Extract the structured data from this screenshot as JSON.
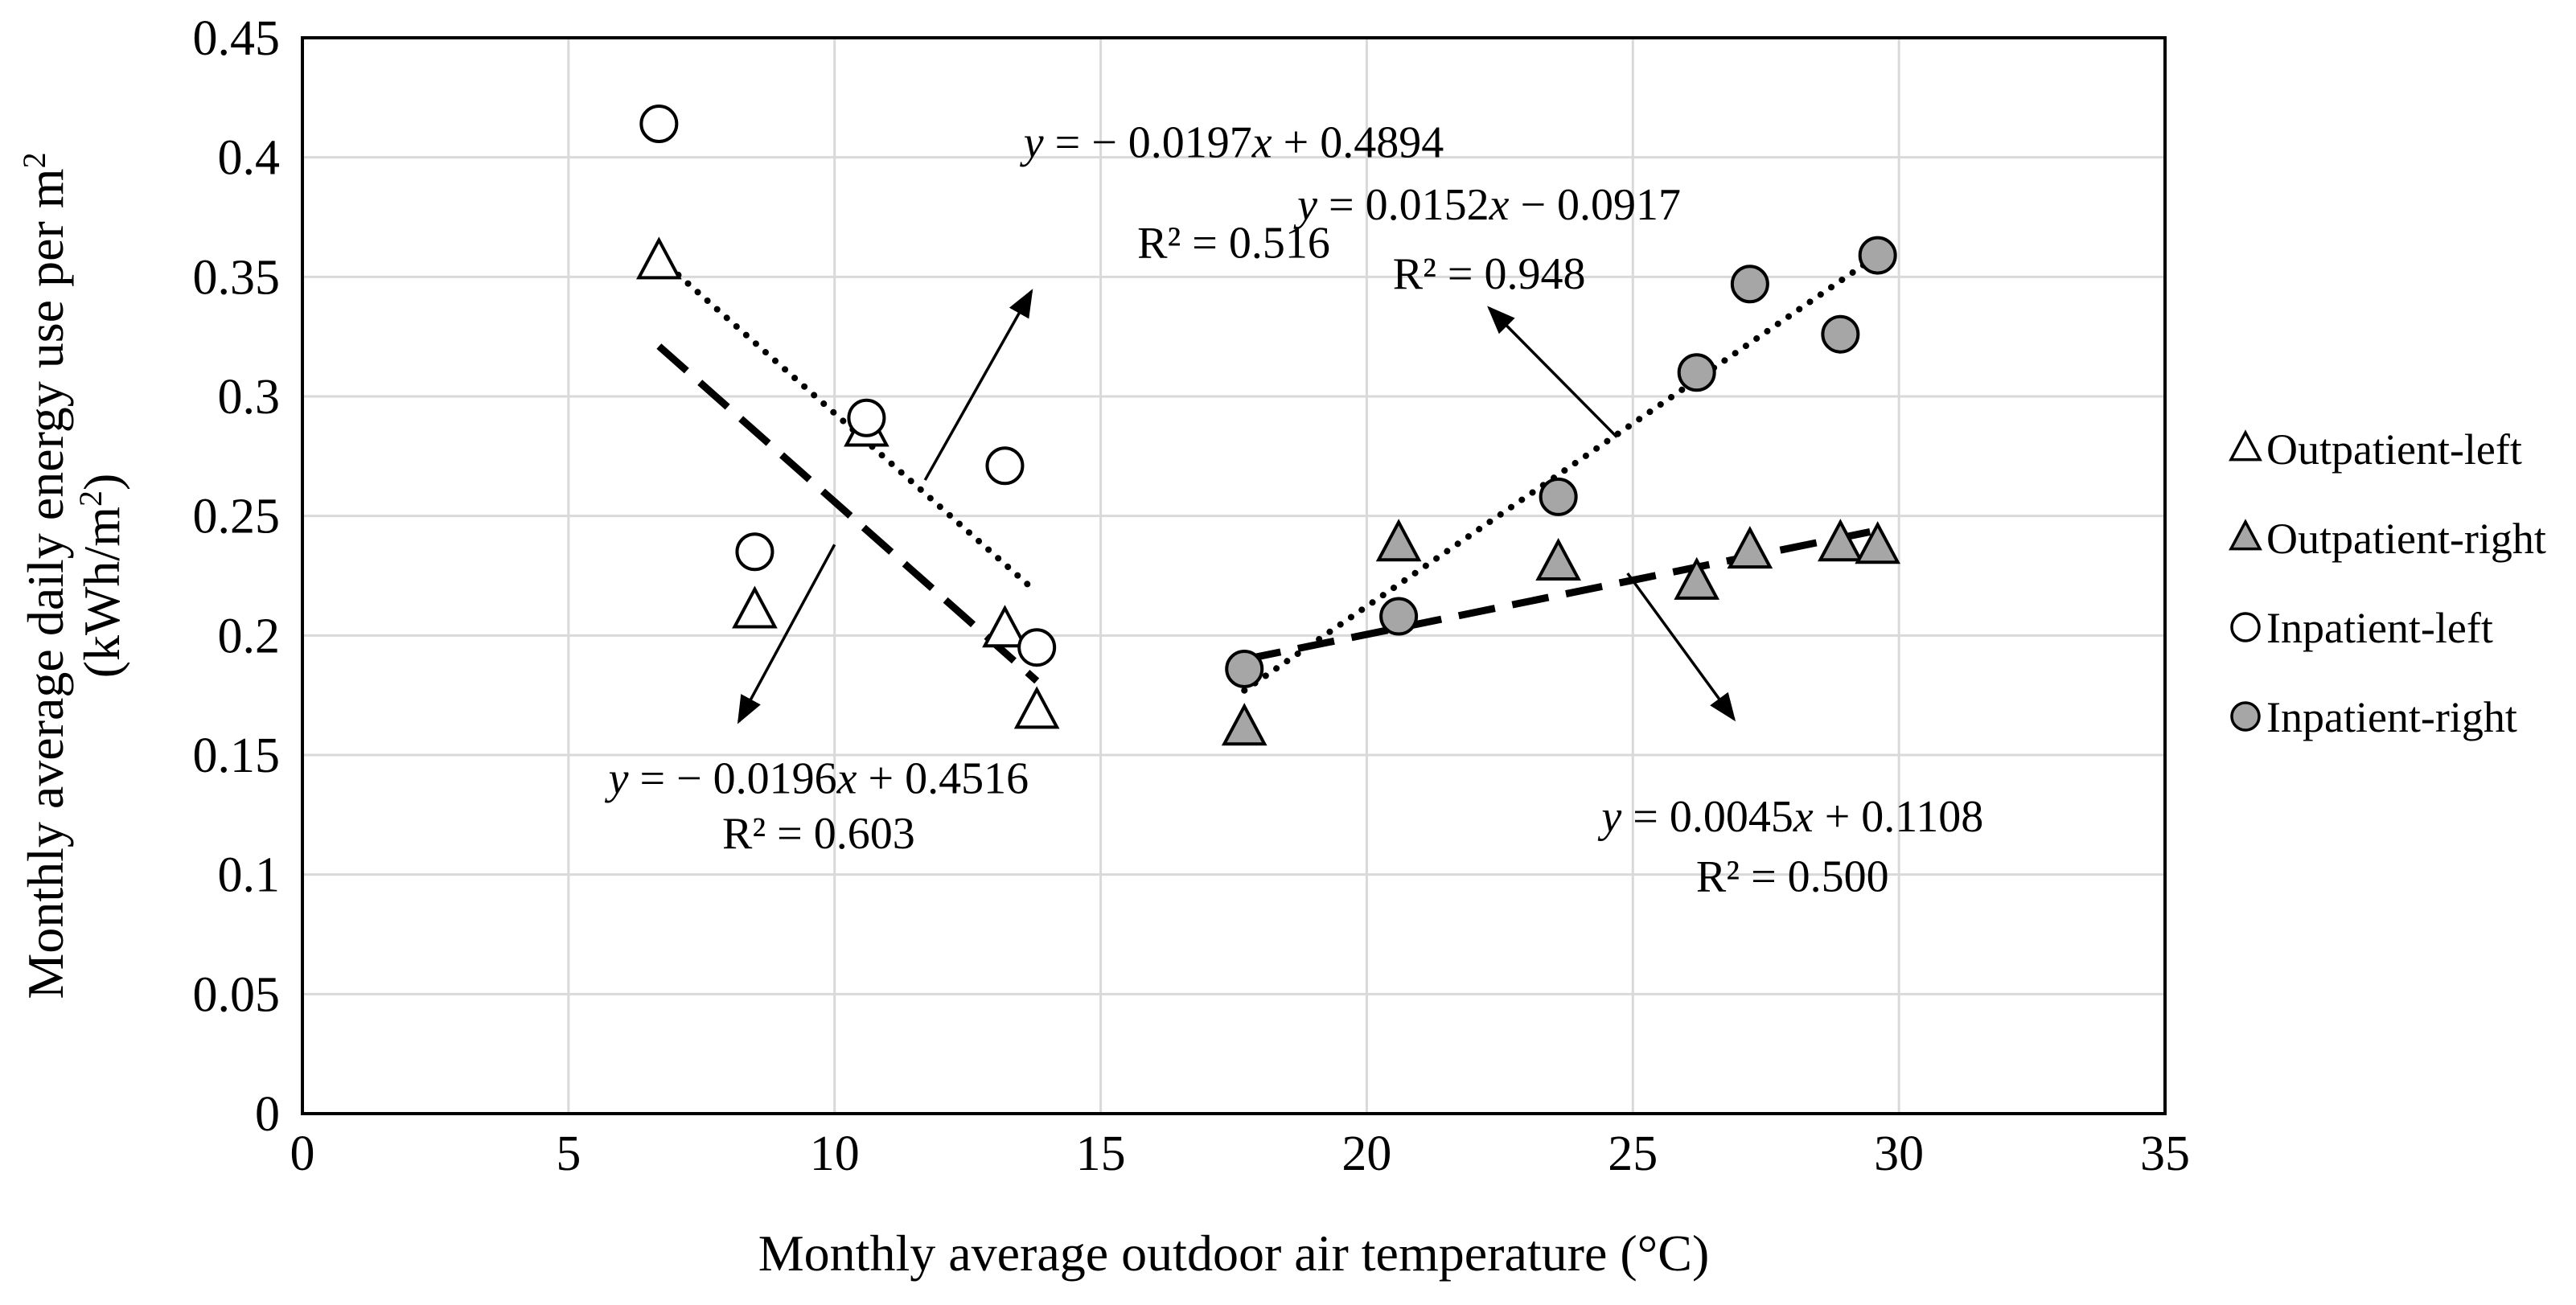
{
  "chart_data": {
    "type": "scatter",
    "xlabel": "Monthly average outdoor air temperature (°C)",
    "ylabel_line1": "Monthly average daily energy use per m",
    "ylabel_line1_sup": "2",
    "ylabel_line2": "(kWh/m",
    "ylabel_line2_sup": "2",
    "ylabel_line2_end": ")",
    "xlim": [
      0,
      35
    ],
    "ylim": [
      0,
      0.45
    ],
    "xticks": [
      0,
      5,
      10,
      15,
      20,
      25,
      30,
      35
    ],
    "yticks": [
      0,
      0.05,
      0.1,
      0.15,
      0.2,
      0.25,
      0.3,
      0.35,
      0.4,
      0.45
    ],
    "xtick_labels": [
      "0",
      "5",
      "10",
      "15",
      "20",
      "25",
      "30",
      "35"
    ],
    "ytick_labels": [
      "0",
      "0.05",
      "0.1",
      "0.15",
      "0.2",
      "0.25",
      "0.3",
      "0.35",
      "0.4",
      "0.45"
    ],
    "grid": true,
    "legend_position": "right",
    "series": [
      {
        "name": "Outpatient-left",
        "marker": "triangle",
        "fill": "#ffffff",
        "points": [
          [
            6.7,
            0.356
          ],
          [
            8.5,
            0.21
          ],
          [
            10.6,
            0.286
          ],
          [
            13.2,
            0.202
          ],
          [
            13.8,
            0.168
          ]
        ]
      },
      {
        "name": "Outpatient-right",
        "marker": "triangle",
        "fill": "#a6a6a6",
        "points": [
          [
            17.7,
            0.161
          ],
          [
            20.6,
            0.238
          ],
          [
            23.6,
            0.23
          ],
          [
            26.2,
            0.222
          ],
          [
            27.2,
            0.235
          ],
          [
            28.9,
            0.238
          ],
          [
            29.6,
            0.237
          ]
        ]
      },
      {
        "name": "Inpatient-left",
        "marker": "circle",
        "fill": "#ffffff",
        "points": [
          [
            6.7,
            0.414
          ],
          [
            8.5,
            0.235
          ],
          [
            10.6,
            0.291
          ],
          [
            13.2,
            0.271
          ],
          [
            13.8,
            0.195
          ]
        ]
      },
      {
        "name": "Inpatient-right",
        "marker": "circle",
        "fill": "#a6a6a6",
        "points": [
          [
            17.7,
            0.186
          ],
          [
            20.6,
            0.208
          ],
          [
            23.6,
            0.258
          ],
          [
            26.2,
            0.31
          ],
          [
            27.2,
            0.347
          ],
          [
            28.9,
            0.326
          ],
          [
            29.6,
            0.359
          ]
        ]
      }
    ],
    "trendlines": [
      {
        "name": "inpatient-left-fit",
        "style": "dotted",
        "x": [
          6.7,
          13.8
        ],
        "y": [
          0.358,
          0.218
        ]
      },
      {
        "name": "outpatient-left-fit",
        "style": "dashed",
        "x": [
          6.7,
          13.8
        ],
        "y": [
          0.321,
          0.181
        ]
      },
      {
        "name": "inpatient-right-fit",
        "style": "dotted",
        "x": [
          17.7,
          29.6
        ],
        "y": [
          0.177,
          0.359
        ]
      },
      {
        "name": "outpatient-right-fit",
        "style": "dashed",
        "x": [
          17.7,
          29.6
        ],
        "y": [
          0.19,
          0.244
        ]
      }
    ],
    "annotations": [
      {
        "name": "eq-top-left",
        "eq_y": "y",
        "eq_rest": " = − 0.0197",
        "eq_x": "x",
        "eq_tail": " + 0.4894",
        "r2": "R² = 0.516",
        "anchor": [
          17.5,
          0.4
        ],
        "r2_anchor": [
          17.5,
          0.358
        ],
        "arrow_from": [
          11.7,
          0.265
        ],
        "arrow_to": [
          13.7,
          0.344
        ]
      },
      {
        "name": "eq-bottom-left",
        "eq_y": "y",
        "eq_rest": " = − 0.0196",
        "eq_x": "x",
        "eq_tail": " + 0.4516",
        "r2": "R² = 0.603",
        "anchor": [
          9.7,
          0.134
        ],
        "r2_anchor": [
          9.7,
          0.111
        ],
        "arrow_from": [
          10.0,
          0.238
        ],
        "arrow_to": [
          8.2,
          0.164
        ]
      },
      {
        "name": "eq-top-right",
        "eq_y": "y",
        "eq_rest": " = 0.0152",
        "eq_x": "x",
        "eq_tail": " − 0.0917",
        "r2": "R² = 0.948",
        "anchor": [
          22.3,
          0.374
        ],
        "r2_anchor": [
          22.3,
          0.345
        ],
        "arrow_from": [
          24.7,
          0.283
        ],
        "arrow_to": [
          22.3,
          0.337
        ]
      },
      {
        "name": "eq-bottom-right",
        "eq_y": "y",
        "eq_rest": " = 0.0045",
        "eq_x": "x",
        "eq_tail": " + 0.1108",
        "r2": "R² = 0.500",
        "anchor": [
          28.0,
          0.118
        ],
        "r2_anchor": [
          28.0,
          0.093
        ],
        "arrow_from": [
          24.9,
          0.226
        ],
        "arrow_to": [
          26.9,
          0.165
        ]
      }
    ]
  }
}
